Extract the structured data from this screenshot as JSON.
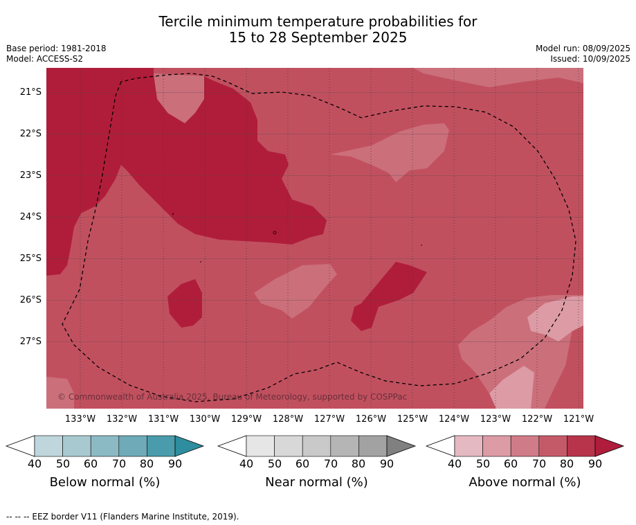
{
  "title_line1": "Tercile minimum temperature probabilities for",
  "title_line2": "15 to 28 September 2025",
  "base_period": "Base period: 1981-2018",
  "model": "Model: ACCESS-S2",
  "model_run": "Model run: 08/09/2025",
  "issued": "Issued: 10/09/2025",
  "latitude_labels": [
    "21°S",
    "22°S",
    "23°S",
    "24°S",
    "25°S",
    "26°S",
    "27°S"
  ],
  "longitude_labels": [
    "133°W",
    "132°W",
    "131°W",
    "130°W",
    "129°W",
    "128°W",
    "127°W",
    "126°W",
    "125°W",
    "124°W",
    "123°W",
    "122°W",
    "121°W"
  ],
  "copyright": "© Commonwealth of Australia 2025, Bureau of Meteorology, supported by COSPPac",
  "colorbars": [
    {
      "title": "Below normal (%)",
      "ticks": [
        "40",
        "50",
        "60",
        "70",
        "80",
        "90"
      ],
      "colors": [
        "#bed6dc",
        "#a8c9d0",
        "#8cbac4",
        "#6eaab8",
        "#4a9bab"
      ],
      "end_color": "#2e8d9f"
    },
    {
      "title": "Near normal (%)",
      "ticks": [
        "40",
        "50",
        "60",
        "70",
        "80",
        "90"
      ],
      "colors": [
        "#e6e6e6",
        "#d8d8d8",
        "#c9c9c9",
        "#b5b5b5",
        "#a2a2a2"
      ],
      "end_color": "#808080"
    },
    {
      "title": "Above normal (%)",
      "ticks": [
        "40",
        "50",
        "60",
        "70",
        "80",
        "90"
      ],
      "colors": [
        "#e5b9c1",
        "#dc9ba5",
        "#d07c88",
        "#c45a68",
        "#b8344b"
      ],
      "end_color": "#b01d3c"
    }
  ],
  "map_colors": {
    "p60": "#cb6f7b",
    "p70": "#c1505f",
    "p80": "#bc3a4f",
    "p90": "#b01d3a"
  },
  "footnote": "--  --  -- EEZ border V11 (Flanders Marine Institute, 2019)."
}
